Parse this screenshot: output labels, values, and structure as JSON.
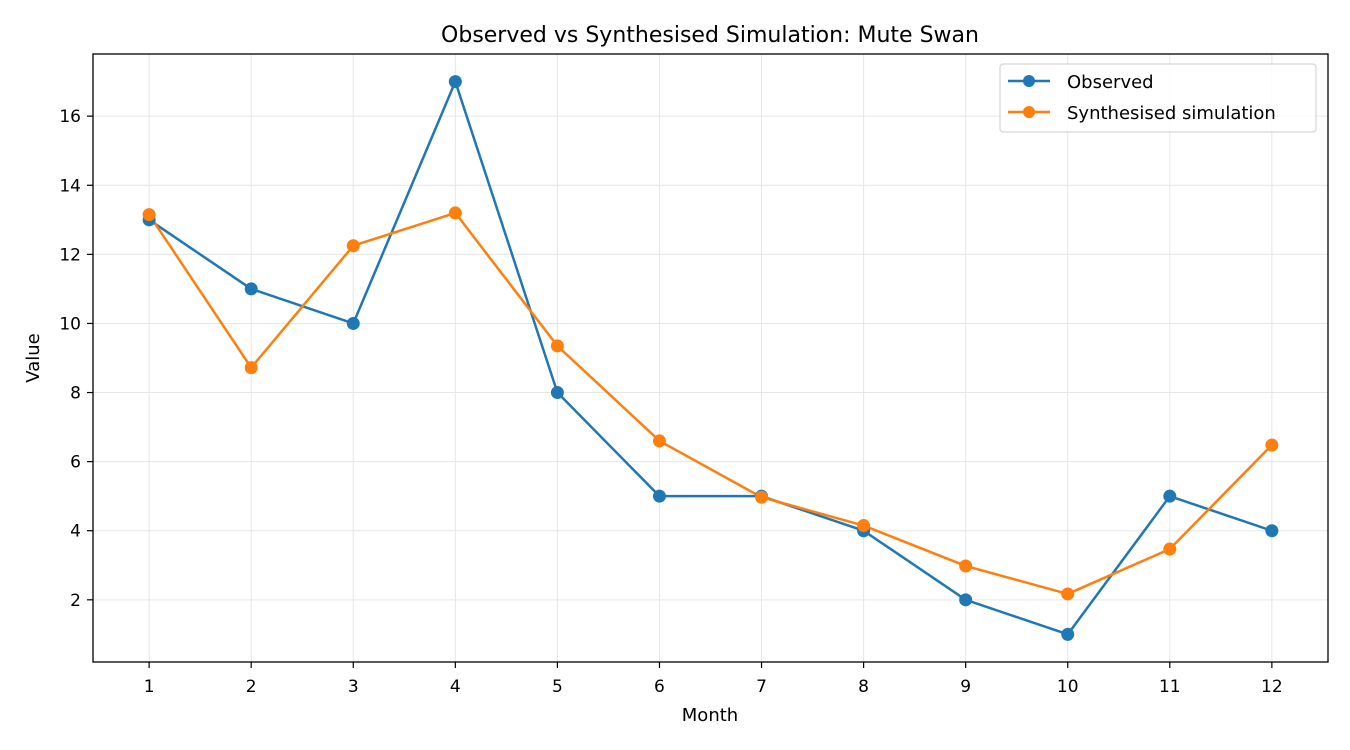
{
  "chart_data": {
    "type": "line",
    "title": "Observed vs Synthesised Simulation: Mute Swan",
    "xlabel": "Month",
    "ylabel": "Value",
    "x": [
      1,
      2,
      3,
      4,
      5,
      6,
      7,
      8,
      9,
      10,
      11,
      12
    ],
    "x_ticks": [
      "1",
      "2",
      "3",
      "4",
      "5",
      "6",
      "7",
      "8",
      "9",
      "10",
      "11",
      "12"
    ],
    "y_ticks": [
      "2",
      "4",
      "6",
      "8",
      "10",
      "12",
      "14",
      "16"
    ],
    "xlim": [
      0.45,
      12.55
    ],
    "ylim": [
      0.2,
      17.8
    ],
    "grid": true,
    "legend_position": "top-right",
    "series": [
      {
        "name": "Observed",
        "color": "#1f77b4",
        "marker": "circle",
        "values": [
          13,
          11,
          10,
          17,
          8,
          5,
          5,
          4,
          2,
          1,
          5,
          4
        ]
      },
      {
        "name": "Synthesised simulation",
        "color": "#ff7f0e",
        "marker": "circle",
        "values": [
          13.15,
          8.72,
          12.25,
          13.2,
          9.35,
          6.6,
          4.97,
          4.15,
          2.98,
          2.17,
          3.47,
          6.48
        ]
      }
    ]
  }
}
